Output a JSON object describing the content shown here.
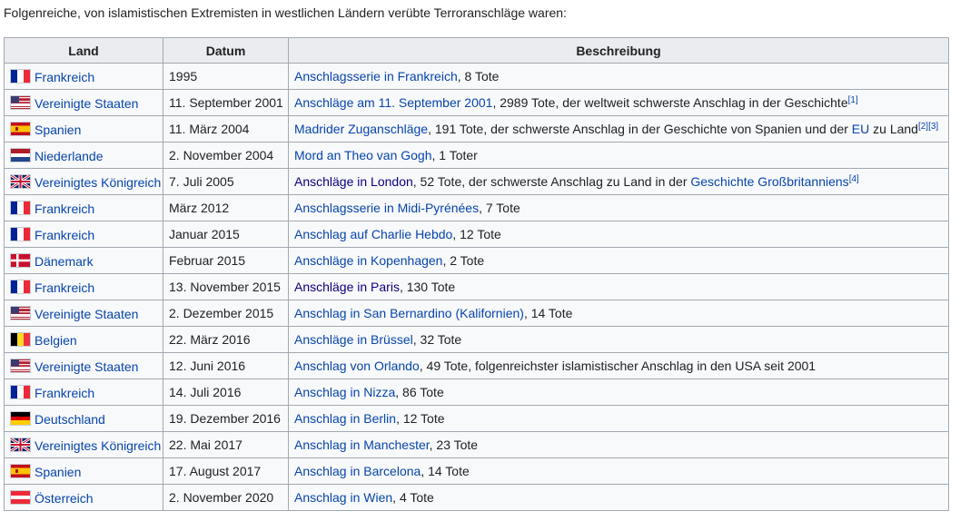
{
  "intro": "Folgenreiche, von islamistischen Extremisten in westlichen Ländern verübte Terroranschläge waren:",
  "table": {
    "header": [
      "Land",
      "Datum",
      "Beschreibung"
    ],
    "rows": [
      {
        "land": "Frankreich",
        "flag": "fr",
        "datum": "1995",
        "beschreibung": [
          {
            "text": "Anschlagsserie in Frankreich",
            "style": "link"
          },
          {
            "text": ", 8 Tote",
            "style": "text"
          }
        ]
      },
      {
        "land": "Vereinigte Staaten",
        "flag": "us",
        "datum": "11. September 2001",
        "beschreibung": [
          {
            "text": "Anschläge am 11. September 2001",
            "style": "link"
          },
          {
            "text": ", 2989 Tote, der weltweit schwerste Anschlag in der Geschichte",
            "style": "text"
          },
          {
            "text": "[1]",
            "style": "ref"
          }
        ]
      },
      {
        "land": "Spanien",
        "flag": "es",
        "datum": "11. März 2004",
        "beschreibung": [
          {
            "text": "Madrider Zuganschläge",
            "style": "link"
          },
          {
            "text": ", 191 Tote, der schwerste Anschlag in der Geschichte von Spanien und der ",
            "style": "text"
          },
          {
            "text": "EU",
            "style": "link"
          },
          {
            "text": " zu Land",
            "style": "text"
          },
          {
            "text": "[2]",
            "style": "ref"
          },
          {
            "text": "[3]",
            "style": "ref"
          }
        ]
      },
      {
        "land": "Niederlande",
        "flag": "nl",
        "datum": "2. November 2004",
        "beschreibung": [
          {
            "text": "Mord an Theo van Gogh",
            "style": "link"
          },
          {
            "text": ", 1 Toter",
            "style": "text"
          }
        ]
      },
      {
        "land": "Vereinigtes Königreich",
        "flag": "gb",
        "datum": "7. Juli 2005",
        "beschreibung": [
          {
            "text": "Anschläge in London",
            "style": "visited"
          },
          {
            "text": ", 52 Tote, der schwerste Anschlag zu Land in der ",
            "style": "text"
          },
          {
            "text": "Geschichte Großbritanniens",
            "style": "link"
          },
          {
            "text": "[4]",
            "style": "ref"
          }
        ]
      },
      {
        "land": "Frankreich",
        "flag": "fr",
        "datum": "März 2012",
        "beschreibung": [
          {
            "text": "Anschlagsserie in Midi-Pyrénées",
            "style": "link"
          },
          {
            "text": ", 7 Tote",
            "style": "text"
          }
        ]
      },
      {
        "land": "Frankreich",
        "flag": "fr",
        "datum": "Januar 2015",
        "beschreibung": [
          {
            "text": "Anschlag auf Charlie Hebdo",
            "style": "link"
          },
          {
            "text": ", 12 Tote",
            "style": "text"
          }
        ]
      },
      {
        "land": "Dänemark",
        "flag": "dk",
        "datum": "Februar 2015",
        "beschreibung": [
          {
            "text": "Anschläge in Kopenhagen",
            "style": "link"
          },
          {
            "text": ", 2 Tote",
            "style": "text"
          }
        ]
      },
      {
        "land": "Frankreich",
        "flag": "fr",
        "datum": "13. November 2015",
        "beschreibung": [
          {
            "text": "Anschläge in Paris",
            "style": "visited"
          },
          {
            "text": ", 130 Tote",
            "style": "text"
          }
        ]
      },
      {
        "land": "Vereinigte Staaten",
        "flag": "us",
        "datum": "2. Dezember 2015",
        "beschreibung": [
          {
            "text": "Anschlag in San Bernardino (Kalifornien)",
            "style": "link"
          },
          {
            "text": ", 14 Tote",
            "style": "text"
          }
        ]
      },
      {
        "land": "Belgien",
        "flag": "be",
        "datum": "22. März 2016",
        "beschreibung": [
          {
            "text": "Anschläge in Brüssel",
            "style": "link"
          },
          {
            "text": ", 32 Tote",
            "style": "text"
          }
        ]
      },
      {
        "land": "Vereinigte Staaten",
        "flag": "us",
        "datum": "12. Juni 2016",
        "beschreibung": [
          {
            "text": "Anschlag von Orlando",
            "style": "link"
          },
          {
            "text": ", 49 Tote, folgenreichster islamistischer Anschlag in den USA seit 2001",
            "style": "text"
          }
        ]
      },
      {
        "land": "Frankreich",
        "flag": "fr",
        "datum": "14. Juli 2016",
        "beschreibung": [
          {
            "text": "Anschlag in Nizza",
            "style": "link"
          },
          {
            "text": ", 86 Tote",
            "style": "text"
          }
        ]
      },
      {
        "land": "Deutschland",
        "flag": "de",
        "datum": "19. Dezember 2016",
        "beschreibung": [
          {
            "text": "Anschlag in Berlin",
            "style": "link"
          },
          {
            "text": ", 12 Tote",
            "style": "text"
          }
        ]
      },
      {
        "land": "Vereinigtes Königreich",
        "flag": "gb",
        "datum": "22. Mai 2017",
        "beschreibung": [
          {
            "text": "Anschlag in Manchester",
            "style": "link"
          },
          {
            "text": ", 23 Tote",
            "style": "text"
          }
        ]
      },
      {
        "land": "Spanien",
        "flag": "es",
        "datum": "17. August 2017",
        "beschreibung": [
          {
            "text": "Anschlag in Barcelona",
            "style": "link"
          },
          {
            "text": ", 14 Tote",
            "style": "text"
          }
        ]
      },
      {
        "land": "Österreich",
        "flag": "at",
        "datum": "2. November 2020",
        "beschreibung": [
          {
            "text": "Anschlag in Wien",
            "style": "link"
          },
          {
            "text": ", 4 Tote",
            "style": "text"
          }
        ]
      }
    ]
  }
}
